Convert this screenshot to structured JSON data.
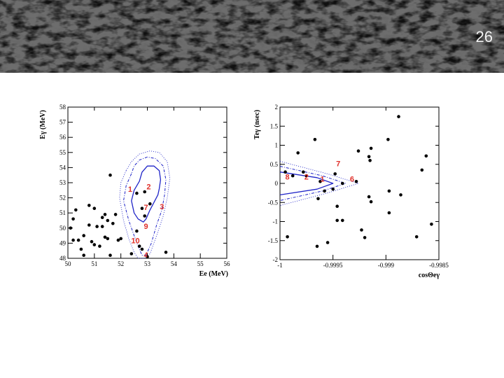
{
  "slide": {
    "number": "26"
  },
  "colors": {
    "contour": "#1f24c8",
    "candidate_label": "#e0302a",
    "points": "#000000"
  },
  "chart_data": [
    {
      "type": "scatter",
      "xlabel": "Ee (MeV)",
      "ylabel": "Eγ (MeV)",
      "xlim": [
        50,
        56
      ],
      "ylim": [
        48,
        58
      ],
      "x_ticks": [
        "50",
        "51",
        "52",
        "53",
        "54",
        "55",
        "56"
      ],
      "y_ticks": [
        "48",
        "49",
        "50",
        "51",
        "52",
        "53",
        "54",
        "55",
        "56",
        "57",
        "58"
      ],
      "points": [
        [
          50.2,
          50.6
        ],
        [
          50.3,
          51.2
        ],
        [
          50.1,
          50.0
        ],
        [
          50.4,
          49.2
        ],
        [
          50.2,
          49.2
        ],
        [
          50.5,
          48.6
        ],
        [
          50.6,
          49.5
        ],
        [
          50.6,
          48.2
        ],
        [
          50.8,
          51.5
        ],
        [
          50.8,
          50.2
        ],
        [
          50.9,
          49.1
        ],
        [
          51.0,
          51.3
        ],
        [
          51.0,
          48.9
        ],
        [
          51.1,
          50.1
        ],
        [
          51.2,
          48.8
        ],
        [
          51.3,
          50.7
        ],
        [
          51.3,
          50.1
        ],
        [
          51.4,
          50.9
        ],
        [
          51.4,
          49.4
        ],
        [
          51.5,
          50.5
        ],
        [
          51.5,
          49.3
        ],
        [
          51.6,
          48.2
        ],
        [
          51.7,
          50.3
        ],
        [
          51.8,
          50.9
        ],
        [
          51.9,
          49.2
        ],
        [
          52.0,
          49.3
        ],
        [
          51.6,
          53.5
        ],
        [
          52.6,
          52.3
        ],
        [
          52.8,
          51.3
        ],
        [
          52.9,
          52.4
        ],
        [
          52.9,
          50.8
        ],
        [
          53.1,
          51.6
        ],
        [
          52.7,
          48.8
        ],
        [
          52.4,
          48.3
        ],
        [
          52.6,
          49.8
        ],
        [
          52.8,
          48.6
        ],
        [
          53.0,
          48.1
        ],
        [
          53.7,
          48.4
        ]
      ],
      "candidate_labels": [
        {
          "text": "1",
          "x": 52.35,
          "y": 52.4
        },
        {
          "text": "2",
          "x": 53.05,
          "y": 52.55
        },
        {
          "text": "7",
          "x": 52.95,
          "y": 51.2
        },
        {
          "text": "3",
          "x": 53.55,
          "y": 51.25
        },
        {
          "text": "9",
          "x": 52.95,
          "y": 49.95
        },
        {
          "text": "10",
          "x": 52.55,
          "y": 49.0
        },
        {
          "text": "4",
          "x": 52.95,
          "y": 48.05
        }
      ],
      "contours": [
        {
          "style": "solid",
          "x": [
            52.7,
            52.5,
            52.4,
            52.5,
            52.65,
            52.85,
            52.95,
            53.1,
            53.25,
            53.4,
            53.45,
            53.5,
            53.45,
            53.25,
            53.0,
            52.8,
            52.7
          ],
          "y": [
            53.1,
            52.5,
            51.8,
            51.0,
            50.6,
            50.4,
            50.6,
            51.2,
            51.7,
            52.2,
            52.6,
            53.2,
            53.8,
            54.1,
            54.1,
            53.7,
            53.1
          ]
        },
        {
          "style": "dash-dot",
          "x": [
            52.4,
            52.2,
            52.1,
            52.3,
            52.5,
            52.65,
            52.8,
            52.95,
            53.15,
            53.35,
            53.55,
            53.65,
            53.7,
            53.6,
            53.3,
            53.0,
            52.7,
            52.5,
            52.4
          ],
          "y": [
            53.6,
            52.8,
            51.8,
            50.5,
            49.5,
            48.8,
            48.2,
            48.2,
            49.0,
            50.2,
            51.2,
            52.2,
            53.2,
            54.1,
            54.6,
            54.7,
            54.5,
            54.1,
            53.6
          ]
        },
        {
          "style": "dotted",
          "x": [
            52.2,
            52.0,
            51.95,
            52.1,
            52.3,
            52.5,
            52.65,
            52.9,
            53.1,
            53.35,
            53.6,
            53.75,
            53.85,
            53.75,
            53.45,
            53.1,
            52.7,
            52.4,
            52.2
          ],
          "y": [
            53.8,
            53.0,
            52.0,
            50.5,
            49.3,
            48.4,
            48.0,
            48.0,
            48.3,
            49.5,
            50.8,
            52.0,
            53.3,
            54.4,
            55.0,
            55.1,
            54.9,
            54.4,
            53.8
          ]
        }
      ]
    },
    {
      "type": "scatter",
      "xlabel": "cosΘeγ",
      "ylabel": "Teγ (nsec)",
      "xlim": [
        -1,
        -0.9985
      ],
      "ylim": [
        -2,
        2
      ],
      "x_ticks": [
        {
          "label": "-1",
          "value": -1
        },
        {
          "label": "-0.9995",
          "value": -0.9995
        },
        {
          "label": "-0.999",
          "value": -0.999
        },
        {
          "label": "-0.9985",
          "value": -0.9985
        }
      ],
      "y_ticks": [
        "-2",
        "-1.5",
        "-1",
        "-0.5",
        "0",
        "0.5",
        "1",
        "1.5",
        "2"
      ],
      "points": [
        [
          -0.99995,
          0.3
        ],
        [
          -0.99988,
          0.2
        ],
        [
          -0.99983,
          0.8
        ],
        [
          -0.99978,
          0.3
        ],
        [
          -0.99975,
          0.2
        ],
        [
          -0.99967,
          1.15
        ],
        [
          -0.99962,
          0.05
        ],
        [
          -0.99964,
          -0.4
        ],
        [
          -0.99965,
          -1.65
        ],
        [
          -0.99958,
          -0.2
        ],
        [
          -0.99955,
          -1.55
        ],
        [
          -0.9995,
          -0.15
        ],
        [
          -0.99948,
          0.25
        ],
        [
          -0.99941,
          0.0
        ],
        [
          -0.99946,
          -0.6
        ],
        [
          -0.99946,
          -0.97
        ],
        [
          -0.99941,
          -0.97
        ],
        [
          -0.99993,
          -1.4
        ],
        [
          -0.99926,
          0.85
        ],
        [
          -0.99923,
          -1.22
        ],
        [
          -0.9992,
          -1.42
        ],
        [
          -0.99914,
          0.92
        ],
        [
          -0.99916,
          0.7
        ],
        [
          -0.99915,
          0.6
        ],
        [
          -0.99916,
          -0.35
        ],
        [
          -0.99914,
          -0.48
        ],
        [
          -0.99928,
          0.05
        ],
        [
          -0.99897,
          -0.2
        ],
        [
          -0.99898,
          1.15
        ],
        [
          -0.99888,
          1.75
        ],
        [
          -0.99897,
          -0.77
        ],
        [
          -0.99886,
          -0.3
        ],
        [
          -0.99866,
          0.35
        ],
        [
          -0.99862,
          0.72
        ],
        [
          -0.99857,
          -1.07
        ],
        [
          -0.99871,
          -1.4
        ]
      ],
      "candidate_labels": [
        {
          "text": "8",
          "x": -0.99993,
          "y": 0.1
        },
        {
          "text": "2",
          "x": -0.99975,
          "y": 0.1
        },
        {
          "text": "1",
          "x": -0.9996,
          "y": 0.05
        },
        {
          "text": "7",
          "x": -0.99945,
          "y": 0.45
        },
        {
          "text": "6",
          "x": -0.99932,
          "y": 0.05
        }
      ],
      "contours": [
        {
          "style": "solid",
          "x": [
            -1,
            -0.99965,
            -0.9995,
            -0.99965,
            -1
          ],
          "y": [
            0.3,
            0.15,
            0,
            -0.15,
            -0.3
          ]
        },
        {
          "style": "dash-dot",
          "x": [
            -1,
            -0.9996,
            -0.99938,
            -0.9996,
            -1
          ],
          "y": [
            0.45,
            0.2,
            0,
            -0.2,
            -0.45
          ]
        },
        {
          "style": "dotted",
          "x": [
            -1,
            -0.99955,
            -0.99926,
            -0.99955,
            -1
          ],
          "y": [
            0.58,
            0.25,
            0,
            -0.25,
            -0.58
          ]
        }
      ]
    }
  ]
}
